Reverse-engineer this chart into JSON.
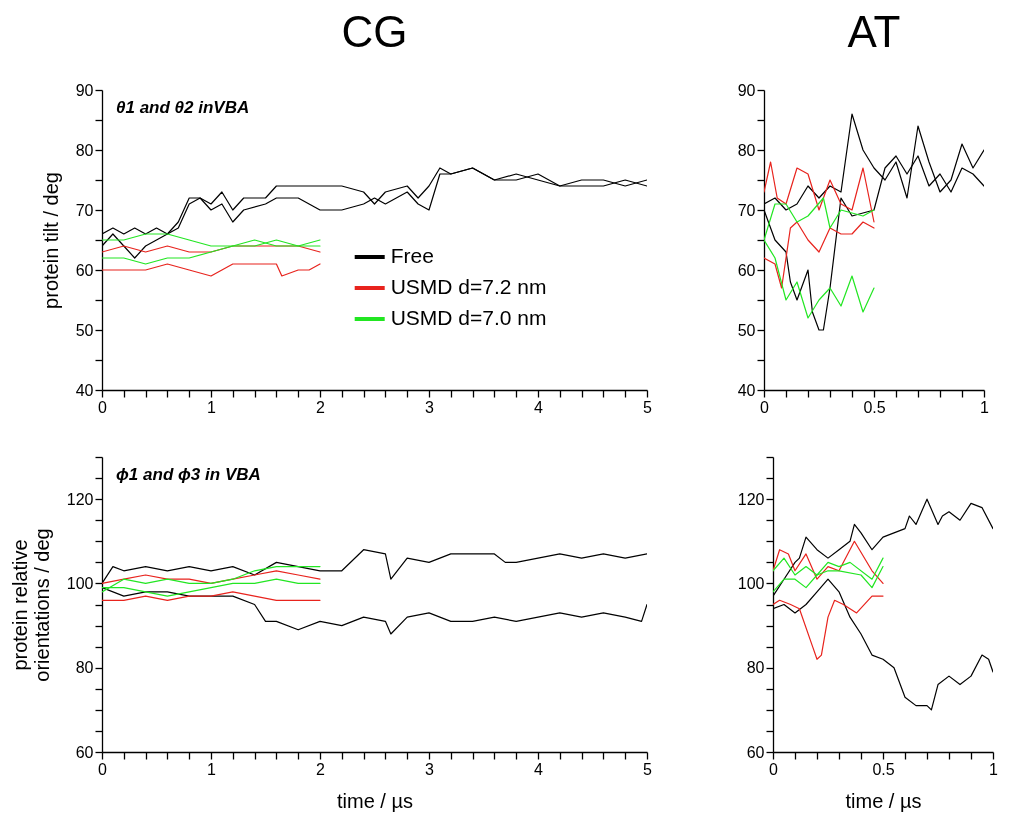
{
  "chart_data": [
    {
      "type": "line",
      "title": "CG",
      "ylabel": "protein tilt / deg",
      "annotations": [
        "θ1 and θ2 inVBA"
      ],
      "legend": "bottom",
      "line_style": "solid",
      "marker": "none",
      "grid": false,
      "xlim": [
        0,
        5
      ],
      "xticks": [
        0,
        {
          "value": 0.2,
          "label": null
        },
        {
          "value": 0.4,
          "label": null
        },
        {
          "value": 0.6,
          "label": null
        },
        {
          "value": 0.8,
          "label": null
        },
        1,
        {
          "value": 1.2,
          "label": null
        },
        {
          "value": 1.4,
          "label": null
        },
        {
          "value": 1.6,
          "label": null
        },
        {
          "value": 1.8,
          "label": null
        },
        2,
        {
          "value": 2.2,
          "label": null
        },
        {
          "value": 2.4,
          "label": null
        },
        {
          "value": 2.6,
          "label": null
        },
        {
          "value": 2.8,
          "label": null
        },
        3,
        {
          "value": 3.2,
          "label": null
        },
        {
          "value": 3.4,
          "label": null
        },
        {
          "value": 3.6,
          "label": null
        },
        {
          "value": 3.8,
          "label": null
        },
        4,
        {
          "value": 4.2,
          "label": null
        },
        {
          "value": 4.4,
          "label": null
        },
        {
          "value": 4.6,
          "label": null
        },
        {
          "value": 4.8,
          "label": null
        },
        5
      ],
      "ylim": [
        40,
        90
      ],
      "yticks": [
        40,
        {
          "value": 45,
          "label": null
        },
        50,
        {
          "value": 55,
          "label": null
        },
        60,
        {
          "value": 65,
          "label": null
        },
        70,
        {
          "value": 75,
          "label": null
        },
        80,
        {
          "value": 85,
          "label": null
        },
        90
      ],
      "series": [
        {
          "name": "Free",
          "color": "#000000",
          "x": [
            0,
            0.1,
            0.2,
            0.3,
            0.4,
            0.5,
            0.6,
            0.7,
            0.8,
            0.9,
            1.0,
            1.1,
            1.2,
            1.3,
            1.5,
            1.6,
            1.8,
            2.0,
            2.2,
            2.4,
            2.5,
            2.6,
            2.8,
            2.9,
            3.0,
            3.1,
            3.2,
            3.4,
            3.6,
            3.8,
            4.0,
            4.2,
            4.4,
            4.6,
            4.8,
            5.0
          ],
          "values": [
            66,
            67,
            66,
            67,
            66,
            67,
            66,
            68,
            72,
            72,
            71,
            73,
            70,
            72,
            72,
            74,
            74,
            74,
            74,
            73,
            71,
            73,
            74,
            72,
            74,
            77,
            76,
            77,
            75,
            76,
            75,
            74,
            75,
            75,
            74,
            75
          ]
        },
        {
          "color": "#000000",
          "x": [
            0,
            0.1,
            0.2,
            0.3,
            0.4,
            0.5,
            0.6,
            0.7,
            0.8,
            0.9,
            1.0,
            1.1,
            1.2,
            1.3,
            1.5,
            1.6,
            1.8,
            2.0,
            2.2,
            2.4,
            2.5,
            2.6,
            2.8,
            2.9,
            3.0,
            3.1,
            3.2,
            3.4,
            3.6,
            3.8,
            4.0,
            4.2,
            4.4,
            4.6,
            4.8,
            5.0
          ],
          "values": [
            64,
            66,
            64,
            62,
            64,
            65,
            66,
            67,
            71,
            72,
            70,
            71,
            68,
            70,
            71,
            72,
            72,
            70,
            70,
            71,
            72,
            71,
            73,
            71,
            70,
            76,
            76,
            77,
            75,
            75,
            76,
            74,
            74,
            74,
            75,
            74
          ]
        },
        {
          "name": "USMD d=7.2 nm",
          "color": "#e8231d",
          "x": [
            0,
            0.2,
            0.4,
            0.6,
            0.8,
            1.0,
            1.2,
            1.4,
            1.6,
            1.65,
            1.8,
            1.9,
            2.0
          ],
          "values": [
            60,
            60,
            60,
            61,
            60,
            59,
            61,
            61,
            61,
            59,
            60,
            60,
            61
          ]
        },
        {
          "color": "#e8231d",
          "x": [
            0,
            0.2,
            0.4,
            0.6,
            0.8,
            1.0,
            1.2,
            1.4,
            1.6,
            1.8,
            2.0
          ],
          "values": [
            63,
            64,
            63,
            64,
            63,
            63,
            64,
            64,
            64,
            64,
            63
          ]
        },
        {
          "name": "USMD d=7.0 nm",
          "color": "#22e622",
          "x": [
            0,
            0.2,
            0.4,
            0.6,
            0.8,
            1.0,
            1.2,
            1.4,
            1.6,
            1.8,
            2.0
          ],
          "values": [
            65,
            65,
            66,
            66,
            65,
            64,
            64,
            65,
            64,
            64,
            64
          ]
        },
        {
          "color": "#22e622",
          "x": [
            0,
            0.2,
            0.4,
            0.6,
            0.8,
            1.0,
            1.2,
            1.4,
            1.6,
            1.8,
            2.0
          ],
          "values": [
            62,
            62,
            61,
            62,
            62,
            63,
            64,
            64,
            65,
            64,
            65
          ]
        }
      ]
    },
    {
      "type": "line",
      "title": "AT",
      "line_style": "solid",
      "marker": "none",
      "grid": false,
      "xlim": [
        0,
        1
      ],
      "xticks": [
        0,
        {
          "value": 0.1,
          "label": null
        },
        {
          "value": 0.2,
          "label": null
        },
        {
          "value": 0.3,
          "label": null
        },
        {
          "value": 0.4,
          "label": null
        },
        0.5,
        {
          "value": 0.6,
          "label": null
        },
        {
          "value": 0.7,
          "label": null
        },
        {
          "value": 0.8,
          "label": null
        },
        {
          "value": 0.9,
          "label": null
        },
        1
      ],
      "ylim": [
        40,
        90
      ],
      "yticks": [
        40,
        {
          "value": 45,
          "label": null
        },
        50,
        {
          "value": 55,
          "label": null
        },
        60,
        {
          "value": 65,
          "label": null
        },
        70,
        {
          "value": 75,
          "label": null
        },
        80,
        {
          "value": 85,
          "label": null
        },
        90
      ],
      "series": [
        {
          "color": "#000000",
          "x": [
            0,
            0.05,
            0.1,
            0.15,
            0.2,
            0.25,
            0.3,
            0.35,
            0.4,
            0.45,
            0.5,
            0.55,
            0.6,
            0.65,
            0.7,
            0.75,
            0.8,
            0.85,
            0.9,
            0.95,
            1.0
          ],
          "values": [
            71,
            72,
            70,
            71,
            74,
            72,
            74,
            73,
            86,
            80,
            77,
            75,
            78,
            72,
            84,
            78,
            73,
            75,
            81,
            77,
            80
          ]
        },
        {
          "color": "#000000",
          "x": [
            0,
            0.05,
            0.1,
            0.12,
            0.15,
            0.2,
            0.22,
            0.25,
            0.27,
            0.3,
            0.35,
            0.4,
            0.5,
            0.55,
            0.6,
            0.65,
            0.7,
            0.75,
            0.8,
            0.85,
            0.9,
            0.95,
            1.0
          ],
          "values": [
            70,
            65,
            63,
            58,
            55,
            60,
            53,
            50,
            50,
            57,
            72,
            69,
            70,
            77,
            79,
            76,
            79,
            74,
            76,
            73,
            77,
            76,
            74
          ]
        },
        {
          "color": "#e8231d",
          "x": [
            0,
            0.03,
            0.06,
            0.1,
            0.15,
            0.2,
            0.25,
            0.3,
            0.35,
            0.4,
            0.45,
            0.5
          ],
          "values": [
            73,
            78,
            72,
            71,
            77,
            76,
            70,
            75,
            71,
            70,
            77,
            68
          ]
        },
        {
          "color": "#e8231d",
          "x": [
            0,
            0.05,
            0.08,
            0.12,
            0.15,
            0.2,
            0.25,
            0.3,
            0.35,
            0.4,
            0.45,
            0.5
          ],
          "values": [
            62,
            61,
            57,
            67,
            68,
            65,
            63,
            67,
            66,
            66,
            68,
            67
          ]
        },
        {
          "color": "#22e622",
          "x": [
            0,
            0.05,
            0.1,
            0.15,
            0.2,
            0.27,
            0.3,
            0.35,
            0.45,
            0.5
          ],
          "values": [
            65,
            71,
            71,
            68,
            69,
            72,
            67,
            70,
            69,
            70
          ]
        },
        {
          "color": "#22e622",
          "x": [
            0,
            0.05,
            0.1,
            0.15,
            0.2,
            0.25,
            0.3,
            0.35,
            0.4,
            0.45,
            0.5
          ],
          "values": [
            65,
            62,
            55,
            58,
            52,
            55,
            57,
            54,
            59,
            53,
            57
          ]
        }
      ]
    },
    {
      "type": "line",
      "xlabel": "time / µs",
      "ylabel": "protein relative\norientations / deg",
      "annotations": [
        "ϕ1 and ϕ3 in VBA"
      ],
      "line_style": "solid",
      "marker": "none",
      "grid": false,
      "xlim": [
        0,
        5
      ],
      "xticks": [
        0,
        {
          "value": 0.2,
          "label": null
        },
        {
          "value": 0.4,
          "label": null
        },
        {
          "value": 0.6,
          "label": null
        },
        {
          "value": 0.8,
          "label": null
        },
        1,
        {
          "value": 1.2,
          "label": null
        },
        {
          "value": 1.4,
          "label": null
        },
        {
          "value": 1.6,
          "label": null
        },
        {
          "value": 1.8,
          "label": null
        },
        2,
        {
          "value": 2.2,
          "label": null
        },
        {
          "value": 2.4,
          "label": null
        },
        {
          "value": 2.6,
          "label": null
        },
        {
          "value": 2.8,
          "label": null
        },
        3,
        {
          "value": 3.2,
          "label": null
        },
        {
          "value": 3.4,
          "label": null
        },
        {
          "value": 3.6,
          "label": null
        },
        {
          "value": 3.8,
          "label": null
        },
        4,
        {
          "value": 4.2,
          "label": null
        },
        {
          "value": 4.4,
          "label": null
        },
        {
          "value": 4.6,
          "label": null
        },
        {
          "value": 4.8,
          "label": null
        },
        5
      ],
      "ylim": [
        60,
        130
      ],
      "yticks": [
        60,
        {
          "value": 65,
          "label": null
        },
        {
          "value": 70,
          "label": null
        },
        {
          "value": 75,
          "label": null
        },
        80,
        {
          "value": 85,
          "label": null
        },
        {
          "value": 90,
          "label": null
        },
        {
          "value": 95,
          "label": null
        },
        100,
        {
          "value": 105,
          "label": null
        },
        {
          "value": 110,
          "label": null
        },
        {
          "value": 115,
          "label": null
        },
        120,
        {
          "value": 125,
          "label": null
        },
        {
          "value": 130,
          "label": null
        }
      ],
      "series": [
        {
          "color": "#000000",
          "x": [
            0,
            0.1,
            0.2,
            0.4,
            0.6,
            0.8,
            1.0,
            1.2,
            1.4,
            1.6,
            1.8,
            2.0,
            2.2,
            2.4,
            2.6,
            2.65,
            2.8,
            3.0,
            3.2,
            3.4,
            3.6,
            3.7,
            3.8,
            4.0,
            4.2,
            4.4,
            4.6,
            4.8,
            5.0
          ],
          "values": [
            100,
            104,
            103,
            104,
            103,
            104,
            103,
            104,
            102,
            105,
            104,
            103,
            103,
            108,
            107,
            101,
            106,
            105,
            107,
            107,
            107,
            105,
            105,
            106,
            107,
            106,
            107,
            106,
            107
          ]
        },
        {
          "color": "#000000",
          "x": [
            0,
            0.2,
            0.4,
            0.6,
            0.8,
            1.0,
            1.2,
            1.4,
            1.5,
            1.6,
            1.8,
            2.0,
            2.2,
            2.4,
            2.6,
            2.65,
            2.8,
            3.0,
            3.2,
            3.4,
            3.6,
            3.8,
            4.0,
            4.2,
            4.4,
            4.6,
            4.8,
            4.95,
            5.0
          ],
          "values": [
            99,
            97,
            98,
            98,
            97,
            97,
            97,
            95,
            91,
            91,
            89,
            91,
            90,
            92,
            91,
            88,
            92,
            93,
            91,
            91,
            92,
            91,
            92,
            93,
            92,
            93,
            92,
            91,
            95
          ]
        },
        {
          "color": "#e8231d",
          "x": [
            0,
            0.2,
            0.4,
            0.6,
            0.8,
            1.0,
            1.2,
            1.4,
            1.6,
            1.8,
            2.0
          ],
          "values": [
            96,
            96,
            97,
            96,
            97,
            97,
            98,
            97,
            96,
            96,
            96
          ]
        },
        {
          "color": "#e8231d",
          "x": [
            0,
            0.2,
            0.4,
            0.6,
            0.8,
            1.0,
            1.2,
            1.4,
            1.6,
            1.8,
            2.0
          ],
          "values": [
            100,
            101,
            102,
            101,
            101,
            100,
            101,
            102,
            103,
            102,
            101
          ]
        },
        {
          "color": "#22e622",
          "x": [
            0,
            0.2,
            0.4,
            0.6,
            0.8,
            1.0,
            1.2,
            1.4,
            1.6,
            1.8,
            2.0
          ],
          "values": [
            98,
            101,
            100,
            101,
            100,
            100,
            101,
            103,
            104,
            104,
            104
          ]
        },
        {
          "color": "#22e622",
          "x": [
            0,
            0.2,
            0.4,
            0.6,
            0.8,
            1.0,
            1.2,
            1.4,
            1.6,
            1.8,
            2.0
          ],
          "values": [
            99,
            99,
            98,
            97,
            98,
            99,
            100,
            100,
            101,
            100,
            100
          ]
        }
      ]
    },
    {
      "type": "line",
      "xlabel": "time / µs",
      "line_style": "solid",
      "marker": "none",
      "grid": false,
      "xlim": [
        0,
        1
      ],
      "xticks": [
        0,
        {
          "value": 0.1,
          "label": null
        },
        {
          "value": 0.2,
          "label": null
        },
        {
          "value": 0.3,
          "label": null
        },
        {
          "value": 0.4,
          "label": null
        },
        0.5,
        {
          "value": 0.6,
          "label": null
        },
        {
          "value": 0.7,
          "label": null
        },
        {
          "value": 0.8,
          "label": null
        },
        {
          "value": 0.9,
          "label": null
        },
        1
      ],
      "ylim": [
        60,
        130
      ],
      "yticks": [
        60,
        {
          "value": 65,
          "label": null
        },
        {
          "value": 70,
          "label": null
        },
        {
          "value": 75,
          "label": null
        },
        80,
        {
          "value": 85,
          "label": null
        },
        {
          "value": 90,
          "label": null
        },
        {
          "value": 95,
          "label": null
        },
        100,
        {
          "value": 105,
          "label": null
        },
        {
          "value": 110,
          "label": null
        },
        {
          "value": 115,
          "label": null
        },
        120,
        {
          "value": 125,
          "label": null
        },
        {
          "value": 130,
          "label": null
        }
      ],
      "series": [
        {
          "color": "#000000",
          "x": [
            0,
            0.05,
            0.1,
            0.12,
            0.15,
            0.2,
            0.25,
            0.3,
            0.35,
            0.37,
            0.4,
            0.45,
            0.5,
            0.55,
            0.6,
            0.62,
            0.65,
            0.7,
            0.75,
            0.77,
            0.8,
            0.85,
            0.9,
            0.95,
            1.0
          ],
          "values": [
            97,
            101,
            105,
            106,
            111,
            108,
            106,
            108,
            110,
            114,
            112,
            108,
            111,
            112,
            113,
            116,
            114,
            120,
            114,
            116,
            117,
            115,
            119,
            118,
            113
          ]
        },
        {
          "color": "#000000",
          "x": [
            0,
            0.05,
            0.1,
            0.15,
            0.2,
            0.25,
            0.3,
            0.35,
            0.4,
            0.45,
            0.5,
            0.55,
            0.6,
            0.65,
            0.7,
            0.72,
            0.75,
            0.8,
            0.85,
            0.9,
            0.95,
            0.98,
            1.0
          ],
          "values": [
            94,
            95,
            93,
            95,
            98,
            101,
            98,
            92,
            88,
            83,
            82,
            80,
            73,
            71,
            71,
            70,
            76,
            78,
            76,
            78,
            83,
            82,
            79
          ]
        },
        {
          "color": "#e8231d",
          "x": [
            0,
            0.03,
            0.07,
            0.1,
            0.15,
            0.2,
            0.25,
            0.3,
            0.37,
            0.45,
            0.5
          ],
          "values": [
            103,
            108,
            107,
            103,
            107,
            101,
            104,
            103,
            110,
            103,
            100
          ]
        },
        {
          "color": "#e8231d",
          "x": [
            0,
            0.03,
            0.08,
            0.12,
            0.18,
            0.2,
            0.22,
            0.25,
            0.28,
            0.32,
            0.38,
            0.45,
            0.5
          ],
          "values": [
            95,
            96,
            95,
            94,
            85,
            82,
            83,
            92,
            96,
            95,
            93,
            97,
            97
          ]
        },
        {
          "color": "#22e622",
          "x": [
            0,
            0.05,
            0.1,
            0.15,
            0.2,
            0.25,
            0.3,
            0.35,
            0.45,
            0.5
          ],
          "values": [
            103,
            106,
            102,
            104,
            102,
            105,
            104,
            105,
            101,
            106
          ]
        },
        {
          "color": "#22e622",
          "x": [
            0,
            0.05,
            0.1,
            0.15,
            0.2,
            0.25,
            0.3,
            0.4,
            0.45,
            0.5
          ],
          "values": [
            98,
            101,
            101,
            99,
            102,
            103,
            103,
            102,
            99,
            104
          ]
        }
      ]
    }
  ]
}
